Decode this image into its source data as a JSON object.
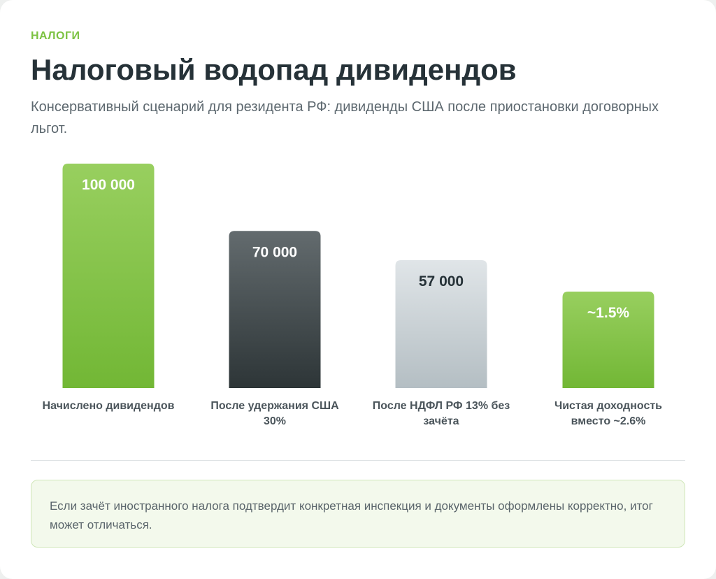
{
  "header": {
    "eyebrow": "НАЛОГИ",
    "title": "Налоговый водопад дивидендов",
    "subtitle": "Консервативный сценарий для резидента РФ: дивиденды США после приостановки договорных льгот."
  },
  "chart_data": {
    "type": "bar",
    "categories": [
      [
        "Начислено дивидендов"
      ],
      [
        "После удержания США",
        "30%"
      ],
      [
        "После НДФЛ РФ 13% без",
        "зачёта"
      ],
      [
        "Чистая доходность",
        "вместо ~2.6%"
      ]
    ],
    "values": [
      100000,
      70000,
      57000,
      1.5
    ],
    "value_labels": [
      "100 000",
      "70 000",
      "57 000",
      "~1.5%"
    ],
    "relative_heights": [
      1.0,
      0.7,
      0.57,
      0.43
    ],
    "colors": [
      "#7dc142",
      "#333c3f",
      "#c0c9cd",
      "#7dc142"
    ],
    "grid": false,
    "legend": "none"
  },
  "note": {
    "text": "Если зачёт иностранного налога подтвердит конкретная инспекция и документы оформлены корректно, итог может отличаться."
  }
}
